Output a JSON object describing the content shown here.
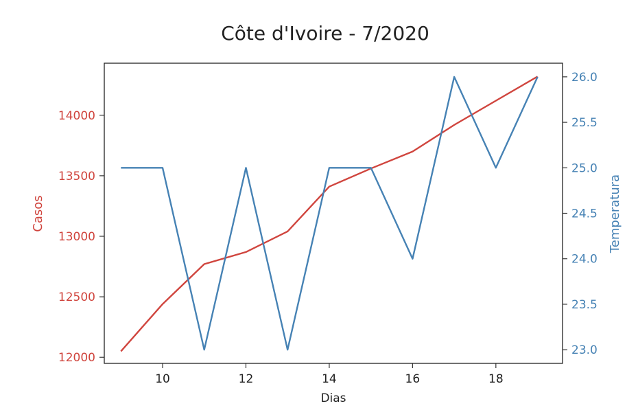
{
  "chart_data": {
    "type": "line",
    "title": "Côte d'Ivoire - 7/2020",
    "xlabel": "Dias",
    "ylabel_left": "Casos",
    "ylabel_right": "Temperatura",
    "x": [
      9,
      10,
      11,
      12,
      13,
      14,
      15,
      16,
      17,
      18,
      19
    ],
    "xlim": [
      8.6,
      19.6
    ],
    "ylim_left": [
      11950,
      14430
    ],
    "ylim_right": [
      22.85,
      26.15
    ],
    "xticks": [
      "10",
      "12",
      "14",
      "16",
      "18"
    ],
    "yticks_left": [
      "12000",
      "12500",
      "13000",
      "13500",
      "14000"
    ],
    "yticks_right": [
      "23.0",
      "23.5",
      "24.0",
      "24.5",
      "25.0",
      "25.5",
      "26.0"
    ],
    "grid": false,
    "colors": {
      "left": "#d0453e",
      "right": "#4682b4",
      "axis": "#222222"
    },
    "series": [
      {
        "axis": "left",
        "color": "#d0453e",
        "values": [
          12050,
          12440,
          12770,
          12870,
          13040,
          13410,
          13560,
          13700,
          13920,
          14120,
          14320
        ]
      },
      {
        "axis": "right",
        "color": "#4682b4",
        "values": [
          25.0,
          25.0,
          23.0,
          25.0,
          23.0,
          25.0,
          25.0,
          24.0,
          26.0,
          25.0,
          26.0
        ]
      }
    ]
  }
}
